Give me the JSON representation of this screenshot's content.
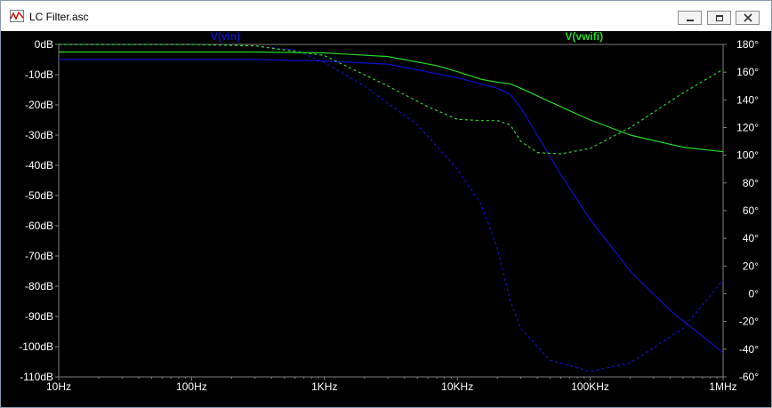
{
  "window": {
    "title": "LC Filter.asc",
    "buttons": [
      "minimize",
      "maximize",
      "close"
    ]
  },
  "colors": {
    "vin": "#1010c8",
    "vwifi": "#28d828",
    "axis_text": "#ffffff",
    "background": "#000000"
  },
  "chart_data": {
    "type": "line",
    "x_scale": "log",
    "xlim": [
      10,
      1000000
    ],
    "x_ticks": [
      {
        "value": 10,
        "label": "10Hz"
      },
      {
        "value": 100,
        "label": "100Hz"
      },
      {
        "value": 1000,
        "label": "1KHz"
      },
      {
        "value": 10000,
        "label": "10KHz"
      },
      {
        "value": 100000,
        "label": "100KHz"
      },
      {
        "value": 1000000,
        "label": "1MHz"
      }
    ],
    "ylim_left": [
      -110,
      0
    ],
    "y_ticks_left": [
      {
        "value": 0,
        "label": "0dB"
      },
      {
        "value": -10,
        "label": "-10dB"
      },
      {
        "value": -20,
        "label": "-20dB"
      },
      {
        "value": -30,
        "label": "-30dB"
      },
      {
        "value": -40,
        "label": "-40dB"
      },
      {
        "value": -50,
        "label": "-50dB"
      },
      {
        "value": -60,
        "label": "-60dB"
      },
      {
        "value": -70,
        "label": "-70dB"
      },
      {
        "value": -80,
        "label": "-80dB"
      },
      {
        "value": -90,
        "label": "-90dB"
      },
      {
        "value": -100,
        "label": "-100dB"
      },
      {
        "value": -110,
        "label": "-110dB"
      }
    ],
    "ylim_right": [
      -60,
      180
    ],
    "y_ticks_right": [
      {
        "value": 180,
        "label": "180°"
      },
      {
        "value": 160,
        "label": "160°"
      },
      {
        "value": 140,
        "label": "140°"
      },
      {
        "value": 120,
        "label": "120°"
      },
      {
        "value": 100,
        "label": "100°"
      },
      {
        "value": 80,
        "label": "80°"
      },
      {
        "value": 60,
        "label": "60°"
      },
      {
        "value": 40,
        "label": "40°"
      },
      {
        "value": 20,
        "label": "20°"
      },
      {
        "value": 0,
        "label": "0°"
      },
      {
        "value": -20,
        "label": "-20°"
      },
      {
        "value": -40,
        "label": "-40°"
      },
      {
        "value": -60,
        "label": "-60°"
      }
    ],
    "series": [
      {
        "name": "V(vin)",
        "color": "#1010c8",
        "axis": "left",
        "style": "solid",
        "points": [
          [
            10,
            -5.0
          ],
          [
            100,
            -5.0
          ],
          [
            300,
            -5.0
          ],
          [
            1000,
            -5.5
          ],
          [
            3000,
            -6.5
          ],
          [
            10000,
            -11
          ],
          [
            20000,
            -14.5
          ],
          [
            25000,
            -16.5
          ],
          [
            30000,
            -21
          ],
          [
            40000,
            -30
          ],
          [
            60000,
            -43
          ],
          [
            100000,
            -58
          ],
          [
            200000,
            -75
          ],
          [
            400000,
            -88
          ],
          [
            1000000,
            -102
          ]
        ]
      },
      {
        "name": "",
        "color": "#1010c8",
        "axis": "right",
        "style": "dashed",
        "points": [
          [
            10,
            180
          ],
          [
            100,
            180
          ],
          [
            300,
            179
          ],
          [
            600,
            176
          ],
          [
            1000,
            167
          ],
          [
            2000,
            150
          ],
          [
            5000,
            122
          ],
          [
            10000,
            90
          ],
          [
            15000,
            65
          ],
          [
            20000,
            33
          ],
          [
            25000,
            -5
          ],
          [
            30000,
            -25
          ],
          [
            50000,
            -48
          ],
          [
            100000,
            -56
          ],
          [
            200000,
            -50
          ],
          [
            500000,
            -25
          ],
          [
            1000000,
            10
          ]
        ]
      },
      {
        "name": "V(vwifi)",
        "color": "#28d828",
        "axis": "left",
        "style": "solid",
        "points": [
          [
            10,
            -2.5
          ],
          [
            100,
            -2.5
          ],
          [
            300,
            -2.5
          ],
          [
            1000,
            -2.8
          ],
          [
            3000,
            -4
          ],
          [
            7000,
            -7
          ],
          [
            10000,
            -9
          ],
          [
            15000,
            -11.5
          ],
          [
            20000,
            -12.5
          ],
          [
            25000,
            -13
          ],
          [
            30000,
            -14.5
          ],
          [
            50000,
            -19
          ],
          [
            100000,
            -25
          ],
          [
            200000,
            -30
          ],
          [
            500000,
            -34
          ],
          [
            1000000,
            -35.5
          ]
        ]
      },
      {
        "name": "",
        "color": "#28d828",
        "axis": "right",
        "style": "dashed",
        "points": [
          [
            10,
            180
          ],
          [
            100,
            180
          ],
          [
            300,
            179
          ],
          [
            1000,
            172
          ],
          [
            3000,
            150
          ],
          [
            6000,
            135
          ],
          [
            10000,
            126
          ],
          [
            15000,
            125
          ],
          [
            20000,
            125
          ],
          [
            25000,
            122
          ],
          [
            30000,
            110
          ],
          [
            40000,
            102
          ],
          [
            60000,
            101
          ],
          [
            100000,
            105
          ],
          [
            200000,
            120
          ],
          [
            500000,
            145
          ],
          [
            1000000,
            162
          ]
        ]
      }
    ],
    "legend": [
      {
        "label": "V(vin)",
        "color": "#1010c8",
        "placement": "top-center-left"
      },
      {
        "label": "V(vwifi)",
        "color": "#28d828",
        "placement": "top-right"
      }
    ]
  }
}
